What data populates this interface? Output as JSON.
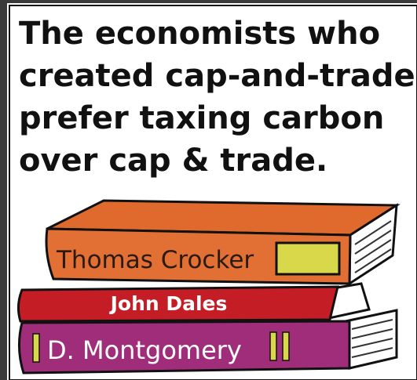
{
  "caption": {
    "lines": [
      "The economists who",
      "created cap-and-trade",
      "prefer taxing carbon",
      "over cap & trade."
    ]
  },
  "books": [
    {
      "label": "Thomas Crocker"
    },
    {
      "label": "John Dales"
    },
    {
      "label": "D. Montgomery"
    }
  ]
}
